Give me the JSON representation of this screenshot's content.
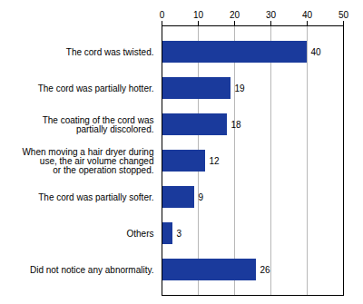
{
  "chart_data": {
    "type": "bar",
    "orientation": "horizontal",
    "categories": [
      "Did not notice any abnormality.",
      "Others",
      "The cord was partially softer.",
      "When moving a hair dryer during\nuse, the air volume changed\nor the operation stopped.",
      "The coating of the cord was\npartially discolored.",
      "The cord was partially hotter.",
      "The cord was twisted."
    ],
    "values": [
      26,
      3,
      9,
      12,
      18,
      19,
      40
    ],
    "color": "#1a3a9c",
    "xlim": [
      0,
      50
    ],
    "xticks": [
      0,
      10,
      20,
      30,
      40,
      50
    ],
    "grid": true,
    "data_labels": true
  }
}
